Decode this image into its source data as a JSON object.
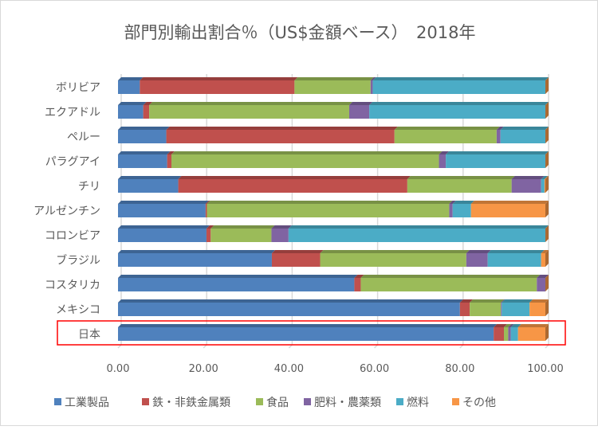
{
  "chart_data": {
    "type": "bar",
    "orientation": "horizontal",
    "stacked": true,
    "style": "3d",
    "title": "部門別輸出割合％（US$金額ベース）　2018年",
    "xlabel": "",
    "ylabel": "",
    "xlim": [
      0,
      100
    ],
    "x_ticks": [
      "0.00",
      "20.00",
      "40.00",
      "60.00",
      "80.00",
      "100.00"
    ],
    "grid": true,
    "legend_position": "bottom",
    "categories": [
      "ボリビア",
      "エクアドル",
      "ペルー",
      "パラグアイ",
      "チリ",
      "アルゼンチン",
      "コロンビア",
      "ブラジル",
      "コスタリカ",
      "メキシコ",
      "日本"
    ],
    "highlighted_category": "日本",
    "highlight_color": "#ff0000",
    "series": [
      {
        "name": "工業製品",
        "color": "#4f81bd",
        "values": [
          5.1,
          5.9,
          11.3,
          11.5,
          14.1,
          20.5,
          20.7,
          36.0,
          55.3,
          80.0,
          87.9
        ]
      },
      {
        "name": "鉄・非鉄金属類",
        "color": "#c0504d",
        "values": [
          36.2,
          1.4,
          53.4,
          1.0,
          53.6,
          0.3,
          1.0,
          11.3,
          1.5,
          2.3,
          2.4
        ]
      },
      {
        "name": "食品",
        "color": "#9bbb59",
        "values": [
          17.8,
          46.8,
          23.9,
          62.6,
          24.4,
          56.7,
          14.2,
          34.2,
          41.2,
          7.3,
          1.0
        ]
      },
      {
        "name": "肥料・農薬類",
        "color": "#8064a2",
        "values": [
          0.5,
          4.7,
          0.9,
          1.6,
          6.9,
          0.8,
          4.0,
          5.0,
          2.0,
          0.2,
          0.6
        ]
      },
      {
        "name": "燃料",
        "color": "#4bacc6",
        "values": [
          40.4,
          41.2,
          10.5,
          23.3,
          0.8,
          4.3,
          60.1,
          12.5,
          0.0,
          6.5,
          1.7
        ]
      },
      {
        "name": "その他",
        "color": "#f79646",
        "values": [
          0.0,
          0.0,
          0.0,
          0.0,
          0.2,
          17.4,
          0.0,
          1.0,
          0.0,
          3.7,
          6.4
        ]
      }
    ]
  }
}
